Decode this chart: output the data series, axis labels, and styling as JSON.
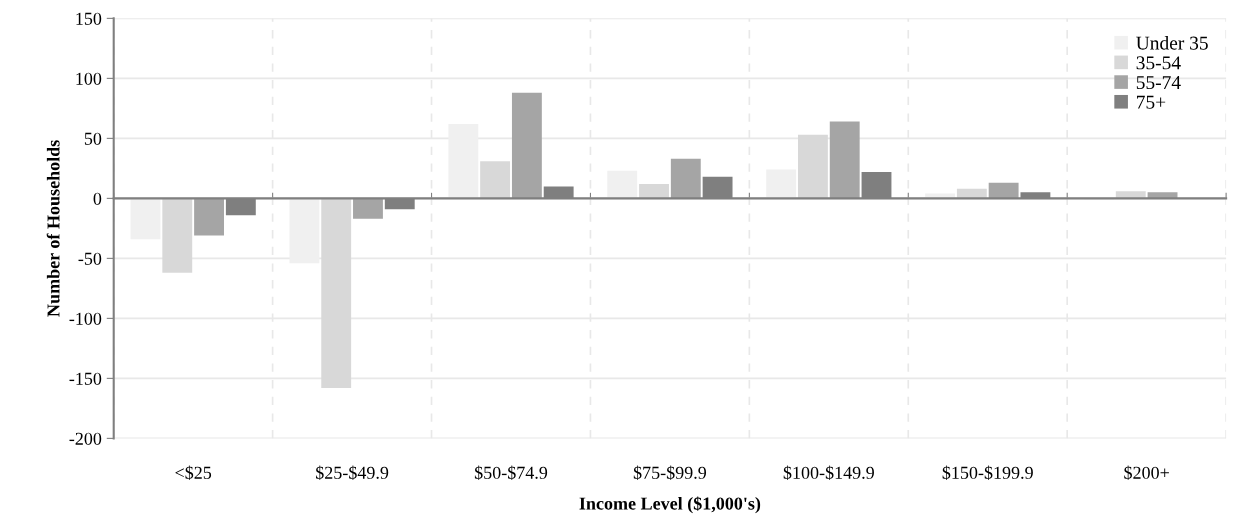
{
  "chart_data": {
    "type": "bar",
    "xlabel": "Income Level ($1,000's)",
    "ylabel": "Number of Households",
    "categories": [
      "<$25",
      "$25-$49.9",
      "$50-$74.9",
      "$75-$99.9",
      "$100-$149.9",
      "$150-$199.9",
      "$200+"
    ],
    "series": [
      {
        "name": "Under 35",
        "color": "#f0f0f0",
        "values": [
          -34,
          -54,
          62,
          23,
          24,
          4,
          -1
        ]
      },
      {
        "name": "35-54",
        "color": "#d8d8d8",
        "values": [
          -62,
          -158,
          31,
          12,
          53,
          8,
          6
        ]
      },
      {
        "name": "55-74",
        "color": "#a5a5a5",
        "values": [
          -31,
          -17,
          88,
          33,
          64,
          13,
          5
        ]
      },
      {
        "name": "75+",
        "color": "#7f7f7f",
        "values": [
          -14,
          -9,
          10,
          18,
          22,
          5,
          0
        ]
      }
    ],
    "ylim": [
      -200,
      150
    ],
    "yticks": [
      -200,
      -150,
      -100,
      -50,
      0,
      50,
      100,
      150
    ],
    "grid": true,
    "legend": "top right"
  }
}
